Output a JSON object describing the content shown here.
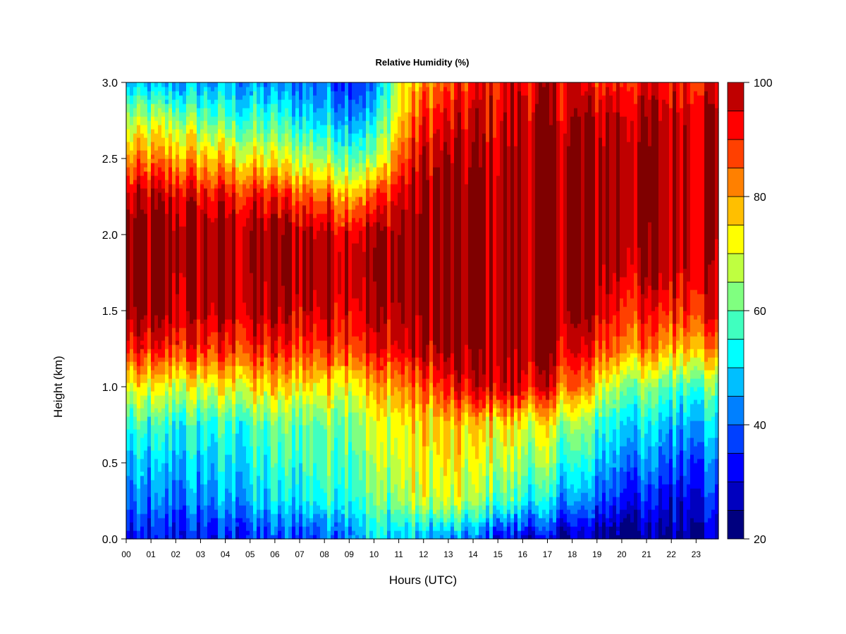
{
  "chart_data": {
    "type": "heatmap",
    "title": "Relative Humidity (%)",
    "xlabel": "Hours (UTC)",
    "ylabel": "Height (km)",
    "x_categories": [
      "00",
      "01",
      "02",
      "03",
      "04",
      "05",
      "06",
      "07",
      "08",
      "09",
      "10",
      "11",
      "12",
      "13",
      "14",
      "15",
      "16",
      "17",
      "18",
      "19",
      "20",
      "21",
      "22",
      "23"
    ],
    "y_ticks": [
      "0.0",
      "0.5",
      "1.0",
      "1.5",
      "2.0",
      "2.5",
      "3.0"
    ],
    "xlim": [
      0,
      23.9
    ],
    "ylim": [
      0,
      3.0
    ],
    "color_scale": {
      "min": 20,
      "max": 100,
      "step": 5,
      "ticks": [
        "20",
        "40",
        "60",
        "80",
        "100"
      ],
      "colors": [
        "#00007F",
        "#0000BF",
        "#0000FF",
        "#0040FF",
        "#0080FF",
        "#00BFFF",
        "#00FFFF",
        "#40FFBF",
        "#80FF80",
        "#BFFF40",
        "#FFFF00",
        "#FFBF00",
        "#FF8000",
        "#FF4000",
        "#FF0000",
        "#BF0000",
        "#7F0000"
      ]
    },
    "heights_km": [
      0.0,
      0.25,
      0.5,
      0.75,
      1.0,
      1.25,
      1.5,
      1.75,
      2.0,
      2.25,
      2.5,
      2.75,
      3.0
    ],
    "hours": [
      0,
      2,
      4,
      6,
      8,
      9,
      10,
      11,
      12,
      13,
      14,
      15,
      16,
      17,
      18,
      19,
      20,
      21,
      22,
      23,
      23.9
    ],
    "rh_profiles": [
      [
        30,
        40,
        45,
        55,
        70,
        90,
        100,
        100,
        100,
        95,
        80,
        65,
        45
      ],
      [
        32,
        42,
        48,
        55,
        70,
        90,
        98,
        100,
        100,
        95,
        80,
        65,
        45
      ],
      [
        33,
        45,
        50,
        55,
        72,
        90,
        98,
        100,
        100,
        92,
        75,
        58,
        45
      ],
      [
        35,
        50,
        55,
        60,
        75,
        90,
        98,
        100,
        100,
        90,
        70,
        55,
        42
      ],
      [
        38,
        55,
        60,
        62,
        75,
        90,
        98,
        100,
        98,
        85,
        65,
        50,
        40
      ],
      [
        45,
        58,
        62,
        65,
        75,
        92,
        98,
        100,
        98,
        82,
        62,
        48,
        38
      ],
      [
        50,
        60,
        65,
        68,
        78,
        92,
        98,
        100,
        98,
        85,
        62,
        48,
        38
      ],
      [
        50,
        65,
        70,
        72,
        82,
        95,
        100,
        100,
        100,
        95,
        85,
        75,
        70
      ],
      [
        45,
        68,
        72,
        75,
        85,
        98,
        100,
        100,
        100,
        100,
        95,
        90,
        80
      ],
      [
        42,
        68,
        72,
        75,
        90,
        100,
        100,
        100,
        100,
        100,
        98,
        92,
        85
      ],
      [
        40,
        65,
        70,
        75,
        95,
        100,
        100,
        100,
        100,
        100,
        98,
        95,
        90
      ],
      [
        32,
        60,
        68,
        75,
        98,
        100,
        100,
        100,
        100,
        100,
        98,
        95,
        92
      ],
      [
        30,
        55,
        65,
        72,
        95,
        100,
        100,
        100,
        100,
        100,
        100,
        98,
        95
      ],
      [
        28,
        50,
        62,
        70,
        92,
        100,
        100,
        100,
        100,
        100,
        100,
        98,
        95
      ],
      [
        25,
        45,
        55,
        65,
        85,
        95,
        100,
        100,
        100,
        100,
        100,
        98,
        92
      ],
      [
        25,
        40,
        50,
        58,
        75,
        90,
        98,
        100,
        100,
        100,
        100,
        98,
        90
      ],
      [
        22,
        35,
        45,
        52,
        65,
        85,
        92,
        98,
        100,
        100,
        100,
        98,
        92
      ],
      [
        22,
        32,
        42,
        50,
        62,
        82,
        90,
        98,
        100,
        100,
        100,
        98,
        90
      ],
      [
        25,
        32,
        40,
        48,
        60,
        80,
        92,
        98,
        100,
        100,
        100,
        98,
        92
      ],
      [
        28,
        35,
        42,
        50,
        62,
        82,
        95,
        98,
        100,
        100,
        100,
        98,
        95
      ],
      [
        28,
        35,
        42,
        50,
        62,
        82,
        95,
        95,
        98,
        100,
        100,
        98,
        95
      ]
    ],
    "grid": false,
    "legend": "colorbar-right"
  }
}
